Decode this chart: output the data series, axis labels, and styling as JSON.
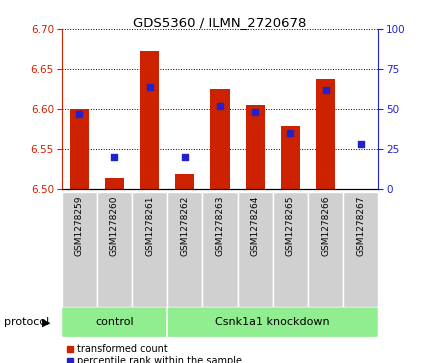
{
  "title": "GDS5360 / ILMN_2720678",
  "samples": [
    "GSM1278259",
    "GSM1278260",
    "GSM1278261",
    "GSM1278262",
    "GSM1278263",
    "GSM1278264",
    "GSM1278265",
    "GSM1278266",
    "GSM1278267"
  ],
  "transformed_count": [
    6.6,
    6.514,
    6.672,
    6.519,
    6.625,
    6.605,
    6.578,
    6.638,
    6.5
  ],
  "percentile_rank": [
    47,
    20,
    64,
    20,
    52,
    48,
    35,
    62,
    28
  ],
  "ylim_left": [
    6.5,
    6.7
  ],
  "ylim_right": [
    0,
    100
  ],
  "yticks_left": [
    6.5,
    6.55,
    6.6,
    6.65,
    6.7
  ],
  "yticks_right": [
    0,
    25,
    50,
    75,
    100
  ],
  "bar_color": "#cc2200",
  "dot_color": "#2222cc",
  "bar_bottom": 6.5,
  "groups": [
    {
      "label": "control",
      "start": 0,
      "end": 3
    },
    {
      "label": "Csnk1a1 knockdown",
      "start": 3,
      "end": 9
    }
  ],
  "protocol_label": "protocol",
  "legend_bar_label": "transformed count",
  "legend_dot_label": "percentile rank within the sample",
  "axis_left_color": "#cc2200",
  "axis_right_color": "#2222cc",
  "sample_box_color": "#d0d0d0",
  "group_box_color": "#90ee90",
  "plot_bg_color": "#ffffff"
}
